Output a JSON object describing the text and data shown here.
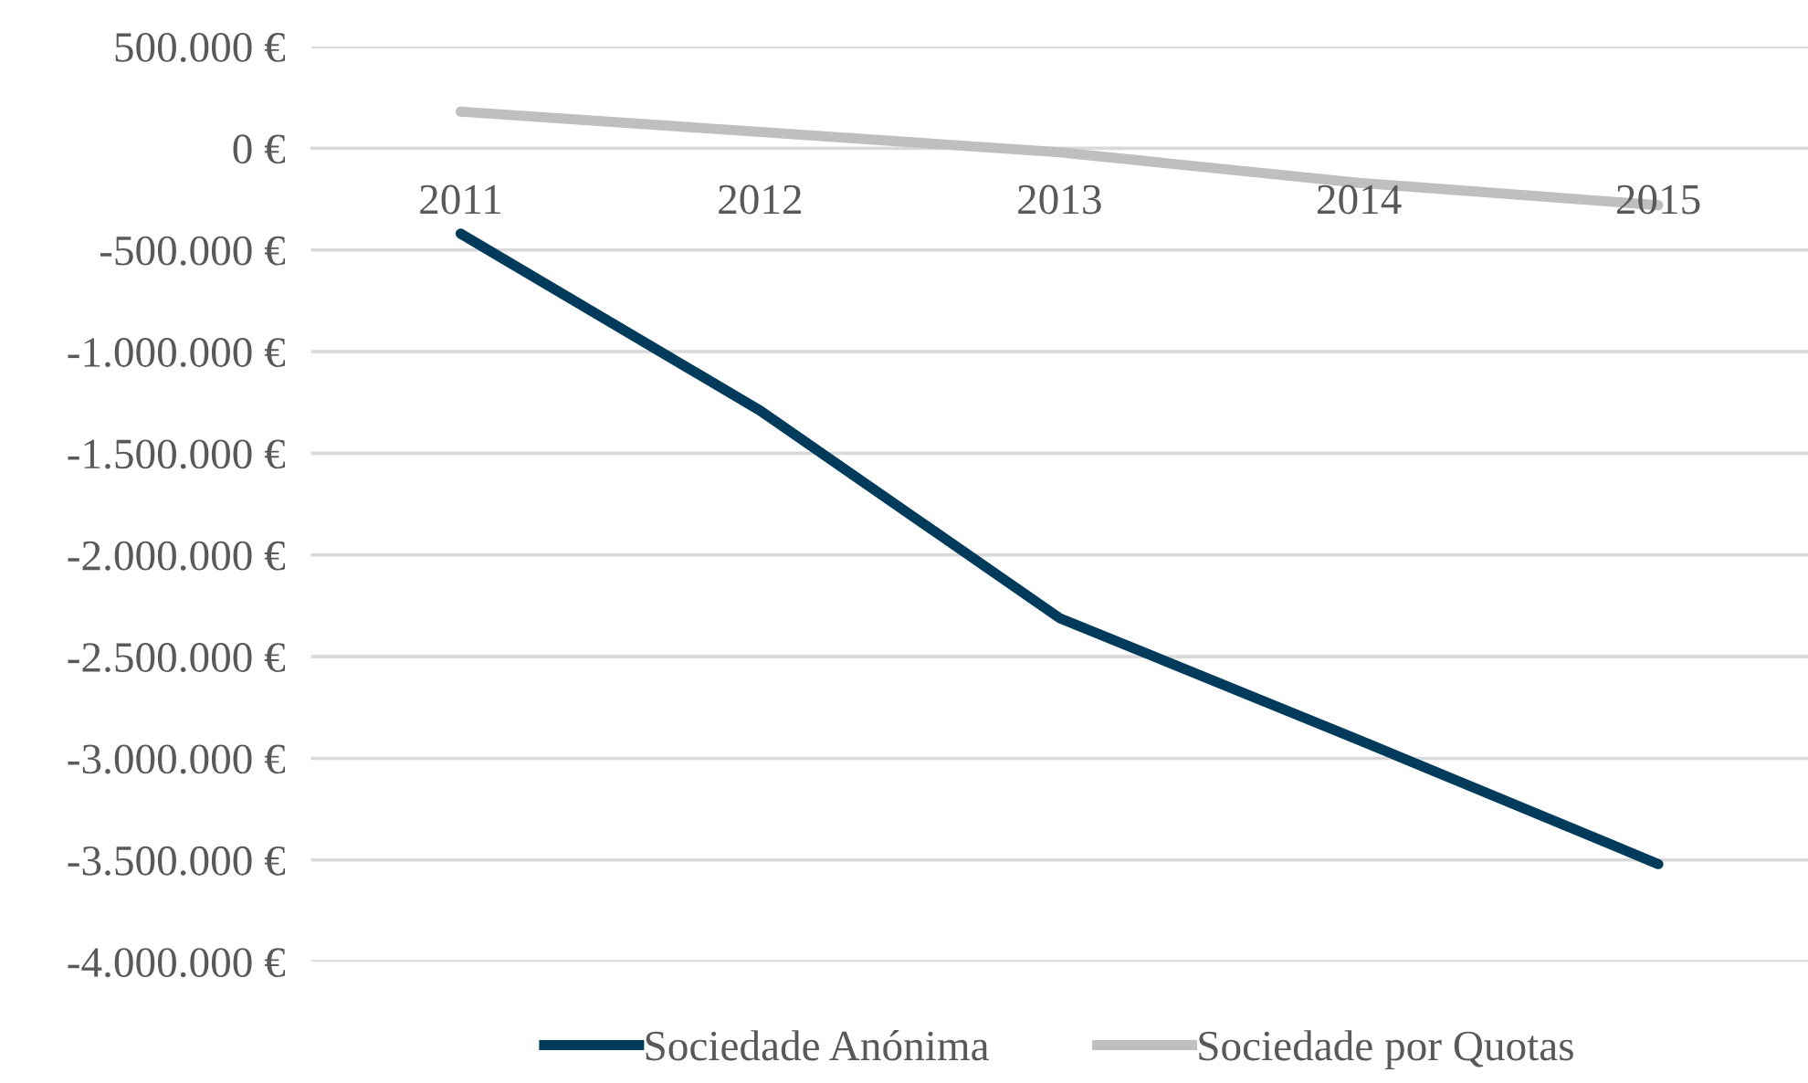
{
  "chart_data": {
    "type": "line",
    "categories": [
      "2011",
      "2012",
      "2013",
      "2014",
      "2015"
    ],
    "series": [
      {
        "name": "Sociedade Anónima",
        "color": "#003b5c",
        "values": [
          -420000,
          -1290000,
          -2310000,
          -2910000,
          -3520000
        ]
      },
      {
        "name": "Sociedade por Quotas",
        "color": "#bfbfbf",
        "values": [
          180000,
          80000,
          -20000,
          -170000,
          -280000
        ]
      }
    ],
    "ylim": [
      -4000000,
      500000
    ],
    "yticks": [
      {
        "value": 500000,
        "label": "500.000 €"
      },
      {
        "value": 0,
        "label": "0 €"
      },
      {
        "value": -500000,
        "label": "-500.000 €"
      },
      {
        "value": -1000000,
        "label": "-1.000.000 €"
      },
      {
        "value": -1500000,
        "label": "-1.500.000 €"
      },
      {
        "value": -2000000,
        "label": "-2.000.000 €"
      },
      {
        "value": -2500000,
        "label": "-2.500.000 €"
      },
      {
        "value": -3000000,
        "label": "-3.000.000 €"
      },
      {
        "value": -3500000,
        "label": "-3.500.000 €"
      },
      {
        "value": -4000000,
        "label": "-4.000.000 €"
      }
    ],
    "grid": "y",
    "legend": "bottom",
    "marker": "none",
    "line_style": "solid"
  }
}
